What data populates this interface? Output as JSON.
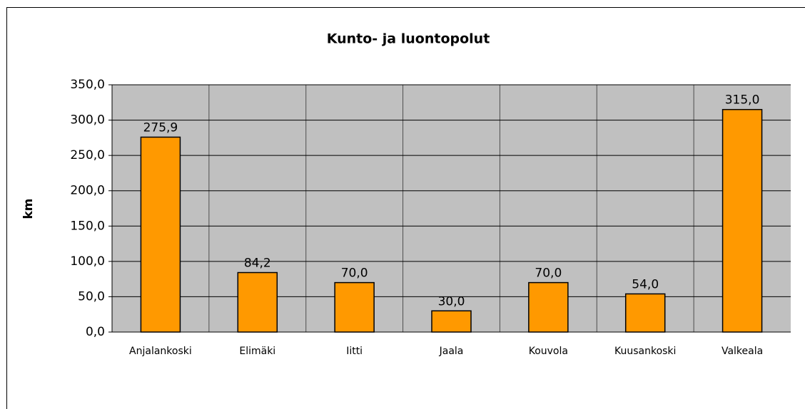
{
  "chart_data": {
    "type": "bar",
    "title": "Kunto- ja luontopolut",
    "y_label": "km",
    "categories": [
      "Anjalankoski",
      "Elimäki",
      "Iitti",
      "Jaala",
      "Kouvola",
      "Kuusankoski",
      "Valkeala"
    ],
    "values": [
      275.9,
      84.2,
      70,
      30,
      70,
      54,
      315
    ],
    "value_labels": [
      "275,9",
      "84,2",
      "70,0",
      "30,0",
      "70,0",
      "54,0",
      "315,0"
    ],
    "color": "#ff9900",
    "ylim": [
      0,
      350
    ],
    "yticks": [
      {
        "value": 0,
        "label": "0,0"
      },
      {
        "value": 50,
        "label": "50,0"
      },
      {
        "value": 100,
        "label": "100,0"
      },
      {
        "value": 150,
        "label": "150,0"
      },
      {
        "value": 200,
        "label": "200,0"
      },
      {
        "value": 250,
        "label": "250,0"
      },
      {
        "value": 300,
        "label": "300,0"
      },
      {
        "value": 350,
        "label": "350,0"
      }
    ],
    "grid": true
  }
}
